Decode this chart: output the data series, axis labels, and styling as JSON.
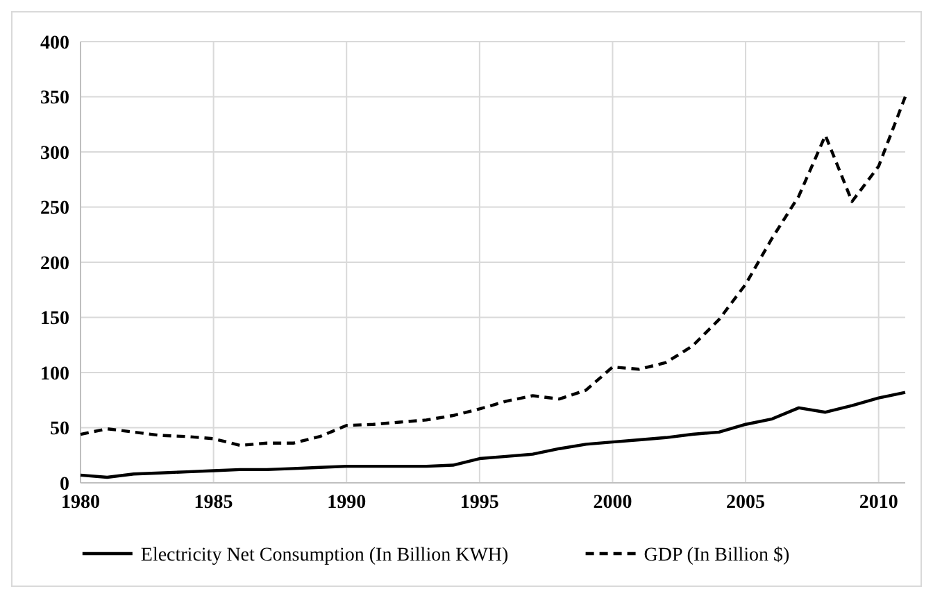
{
  "chart_data": {
    "type": "line",
    "x": [
      1980,
      1981,
      1982,
      1983,
      1984,
      1985,
      1986,
      1987,
      1988,
      1989,
      1990,
      1991,
      1992,
      1993,
      1994,
      1995,
      1996,
      1997,
      1998,
      1999,
      2000,
      2001,
      2002,
      2003,
      2004,
      2005,
      2006,
      2007,
      2008,
      2009,
      2010,
      2011
    ],
    "series": [
      {
        "name": "Electricity Net Consumption (In Billion KWH)",
        "color": "#000000",
        "line_style": "solid",
        "values": [
          7,
          5,
          8,
          9,
          10,
          11,
          12,
          12,
          13,
          14,
          15,
          15,
          15,
          15,
          16,
          22,
          24,
          26,
          31,
          35,
          37,
          39,
          41,
          44,
          46,
          53,
          58,
          68,
          64,
          70,
          77,
          82
        ]
      },
      {
        "name": "GDP (In Billion $)",
        "color": "#000000",
        "line_style": "dashed",
        "values": [
          44,
          49,
          46,
          43,
          42,
          40,
          34,
          36,
          36,
          42,
          52,
          53,
          55,
          57,
          61,
          67,
          74,
          79,
          76,
          84,
          105,
          103,
          109,
          124,
          148,
          180,
          222,
          260,
          315,
          255,
          287,
          350
        ]
      }
    ],
    "xlim": [
      1980,
      2011
    ],
    "xticks": [
      1980,
      1985,
      1990,
      1995,
      2000,
      2005,
      2010
    ],
    "ylim": [
      0,
      400
    ],
    "yticks": [
      0,
      50,
      100,
      150,
      200,
      250,
      300,
      350,
      400
    ],
    "grid": true,
    "legend": "bottom",
    "marker": "none"
  }
}
